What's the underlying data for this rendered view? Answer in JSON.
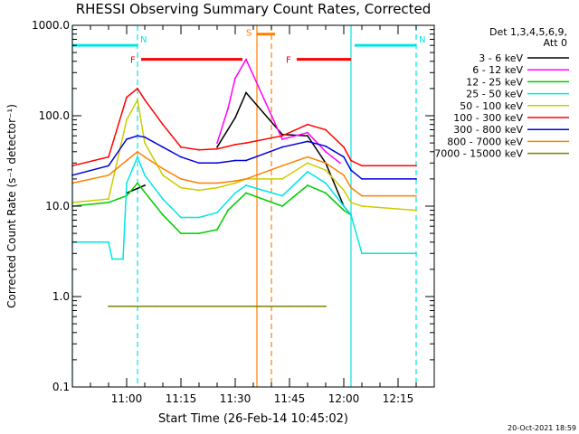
{
  "chart_data": {
    "type": "line",
    "title": "RHESSI Observing Summary Count Rates, Corrected",
    "xlabel": "Start Time (26-Feb-14 10:45:02)",
    "ylabel": "Corrected Count Rate (s⁻¹ detector⁻¹)",
    "yscale": "log",
    "ylim": [
      0.1,
      1000.0
    ],
    "y_ticks": [
      {
        "value": 0.1,
        "label": "0.1"
      },
      {
        "value": 1.0,
        "label": "1.0"
      },
      {
        "value": 10.0,
        "label": "10.0"
      },
      {
        "value": 100.0,
        "label": "100.0"
      },
      {
        "value": 1000.0,
        "label": "1000.0"
      }
    ],
    "x_range": [
      "10:45",
      "12:25"
    ],
    "x_ticks": [
      "11:00",
      "11:15",
      "11:30",
      "11:45",
      "12:00",
      "12:15"
    ],
    "legend_header": [
      "Det 1,3,4,5,6,9,",
      "Att 0"
    ],
    "legend_position": "right",
    "footer": "20-Oct-2021 18:59",
    "flags": [
      {
        "label": "N",
        "color": "#00e6e6",
        "start": "10:45",
        "end": "11:03",
        "y": 600
      },
      {
        "label": "N",
        "color": "#00e6e6",
        "start": "12:03",
        "end": "12:20",
        "y": 600
      },
      {
        "label": "F",
        "color": "#ff0000",
        "start": "11:04",
        "end": "11:32",
        "y": 420
      },
      {
        "label": "F",
        "color": "#ff0000",
        "start": "11:47",
        "end": "12:02",
        "y": 420
      },
      {
        "label": "S",
        "color": "#ff8000",
        "start": "11:36",
        "end": "11:41",
        "y": 800
      }
    ],
    "vlines": [
      {
        "time": "10:45",
        "color": "#00e6e6",
        "style": "solid"
      },
      {
        "time": "11:03",
        "color": "#00e6e6",
        "style": "dashed"
      },
      {
        "time": "11:36",
        "color": "#ff8000",
        "style": "solid"
      },
      {
        "time": "11:40",
        "color": "#ff8000",
        "style": "dashed"
      },
      {
        "time": "12:02",
        "color": "#00e6e6",
        "style": "solid"
      },
      {
        "time": "12:20",
        "color": "#00e6e6",
        "style": "dashed"
      }
    ],
    "series": [
      {
        "name": "3 - 6 keV",
        "color": "#000000",
        "t": [
          "11:00",
          "11:05",
          "11:10",
          "11:15",
          "11:20",
          "11:25",
          "11:30",
          "11:33",
          "11:43",
          "11:50",
          "11:55",
          "12:00",
          "12:02"
        ],
        "values": [
          14,
          17,
          null,
          null,
          null,
          45,
          95,
          180,
          62,
          60,
          30,
          10,
          8
        ]
      },
      {
        "name": "6 - 12 keV",
        "color": "#ff00ff",
        "t": [
          "11:25",
          "11:28",
          "11:30",
          "11:33",
          "11:43",
          "11:50",
          "11:55",
          "11:59"
        ],
        "values": [
          50,
          120,
          260,
          420,
          55,
          65,
          40,
          30
        ]
      },
      {
        "name": "12 - 25 keV",
        "color": "#00cc00",
        "t": [
          "10:45",
          "10:55",
          "11:00",
          "11:03",
          "11:10",
          "11:15",
          "11:20",
          "11:25",
          "11:28",
          "11:33",
          "11:43",
          "11:50",
          "11:55",
          "12:00",
          "12:02"
        ],
        "values": [
          10,
          11,
          13,
          18,
          8,
          5,
          5,
          5.5,
          9,
          14,
          10,
          17,
          14,
          9,
          8
        ]
      },
      {
        "name": "25 - 50 keV",
        "color": "#00e6e6",
        "t": [
          "10:45",
          "10:55",
          "10:56",
          "10:59",
          "11:00",
          "11:03",
          "11:05",
          "11:10",
          "11:15",
          "11:20",
          "11:25",
          "11:30",
          "11:33",
          "11:43",
          "11:50",
          "11:55",
          "12:00",
          "12:02",
          "12:05",
          "12:10",
          "12:20"
        ],
        "values": [
          4,
          4,
          2.6,
          2.6,
          18,
          35,
          22,
          12,
          7.5,
          7.5,
          8.5,
          14,
          17,
          13,
          24,
          18,
          10,
          8,
          3,
          3,
          3
        ]
      },
      {
        "name": "50 - 100 keV",
        "color": "#cccc00",
        "t": [
          "10:45",
          "10:55",
          "11:00",
          "11:03",
          "11:05",
          "11:10",
          "11:15",
          "11:20",
          "11:25",
          "11:30",
          "11:33",
          "11:43",
          "11:50",
          "11:55",
          "12:00",
          "12:02",
          "12:05",
          "12:20"
        ],
        "values": [
          11,
          12,
          90,
          150,
          50,
          22,
          16,
          15,
          16,
          18,
          20,
          20,
          30,
          25,
          15,
          11,
          10,
          9
        ]
      },
      {
        "name": "100 - 300 keV",
        "color": "#ff0000",
        "t": [
          "10:45",
          "10:55",
          "11:00",
          "11:03",
          "11:05",
          "11:10",
          "11:15",
          "11:20",
          "11:25",
          "11:30",
          "11:33",
          "11:43",
          "11:50",
          "11:55",
          "12:00",
          "12:02",
          "12:05",
          "12:20"
        ],
        "values": [
          28,
          35,
          160,
          200,
          150,
          80,
          45,
          42,
          43,
          48,
          50,
          60,
          80,
          70,
          45,
          32,
          28,
          28
        ]
      },
      {
        "name": "300 - 800 keV",
        "color": "#0000dd",
        "t": [
          "10:45",
          "10:55",
          "11:00",
          "11:03",
          "11:05",
          "11:10",
          "11:15",
          "11:20",
          "11:25",
          "11:30",
          "11:33",
          "11:43",
          "11:50",
          "11:55",
          "12:00",
          "12:02",
          "12:05",
          "12:20"
        ],
        "values": [
          22,
          28,
          55,
          60,
          58,
          45,
          35,
          30,
          30,
          32,
          32,
          45,
          52,
          46,
          35,
          25,
          20,
          20
        ]
      },
      {
        "name": "800 - 7000 keV",
        "color": "#ff8000",
        "t": [
          "10:45",
          "10:55",
          "11:00",
          "11:03",
          "11:05",
          "11:10",
          "11:15",
          "11:20",
          "11:25",
          "11:30",
          "11:33",
          "11:43",
          "11:50",
          "11:55",
          "12:00",
          "12:02",
          "12:05",
          "12:20"
        ],
        "values": [
          18,
          22,
          32,
          40,
          35,
          26,
          20,
          18,
          18,
          19,
          20,
          28,
          35,
          30,
          22,
          16,
          13,
          13
        ]
      },
      {
        "name": "7000 - 15000 keV",
        "color": "#808000",
        "t": [
          "10:55",
          "11:00",
          "11:03",
          "11:08",
          "11:45",
          "11:50",
          "11:55"
        ],
        "values": [
          0.78,
          0.78,
          0.78,
          0.78,
          0.78,
          0.78,
          0.78
        ]
      }
    ]
  }
}
